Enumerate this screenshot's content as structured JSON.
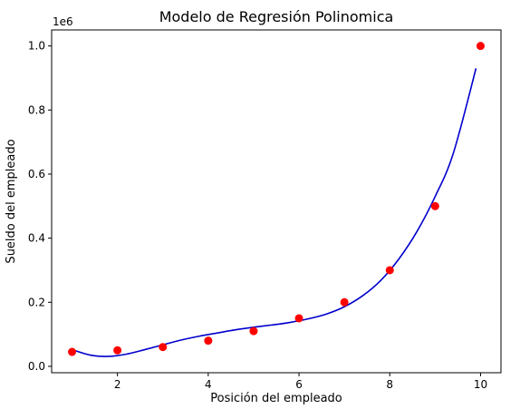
{
  "chart_data": {
    "type": "scatter",
    "title": "Modelo de Regresión Polinomica",
    "xlabel": "Posición del empleado",
    "ylabel": "Sueldo del empleado",
    "offset_label": "1e6",
    "xlim": [
      0.55,
      10.45
    ],
    "ylim": [
      -0.02,
      1.05
    ],
    "x_ticks": [
      2,
      4,
      6,
      8,
      10
    ],
    "x_tick_labels": [
      "2",
      "4",
      "6",
      "8",
      "10"
    ],
    "y_ticks": [
      0.0,
      0.2,
      0.4,
      0.6,
      0.8,
      1.0
    ],
    "y_tick_labels": [
      "0.0",
      "0.2",
      "0.4",
      "0.6",
      "0.8",
      "1.0"
    ],
    "grid": false,
    "series": [
      {
        "kind": "points",
        "color": "#ff0000",
        "x": [
          1,
          2,
          3,
          4,
          5,
          6,
          7,
          8,
          9,
          10
        ],
        "y": [
          0.045,
          0.05,
          0.06,
          0.08,
          0.11,
          0.15,
          0.2,
          0.3,
          0.5,
          1.0
        ]
      },
      {
        "kind": "line",
        "color": "#0000cd",
        "x": [
          1.0,
          1.4,
          1.8,
          2.2,
          2.6,
          3.0,
          3.4,
          3.8,
          4.2,
          4.6,
          5.0,
          5.4,
          5.8,
          6.2,
          6.6,
          7.0,
          7.4,
          7.8,
          8.2,
          8.6,
          9.0,
          9.4,
          9.9
        ],
        "y": [
          0.052,
          0.035,
          0.031,
          0.038,
          0.052,
          0.067,
          0.082,
          0.094,
          0.104,
          0.114,
          0.122,
          0.129,
          0.137,
          0.148,
          0.163,
          0.186,
          0.22,
          0.268,
          0.335,
          0.421,
          0.53,
          0.665,
          0.93
        ]
      }
    ]
  }
}
